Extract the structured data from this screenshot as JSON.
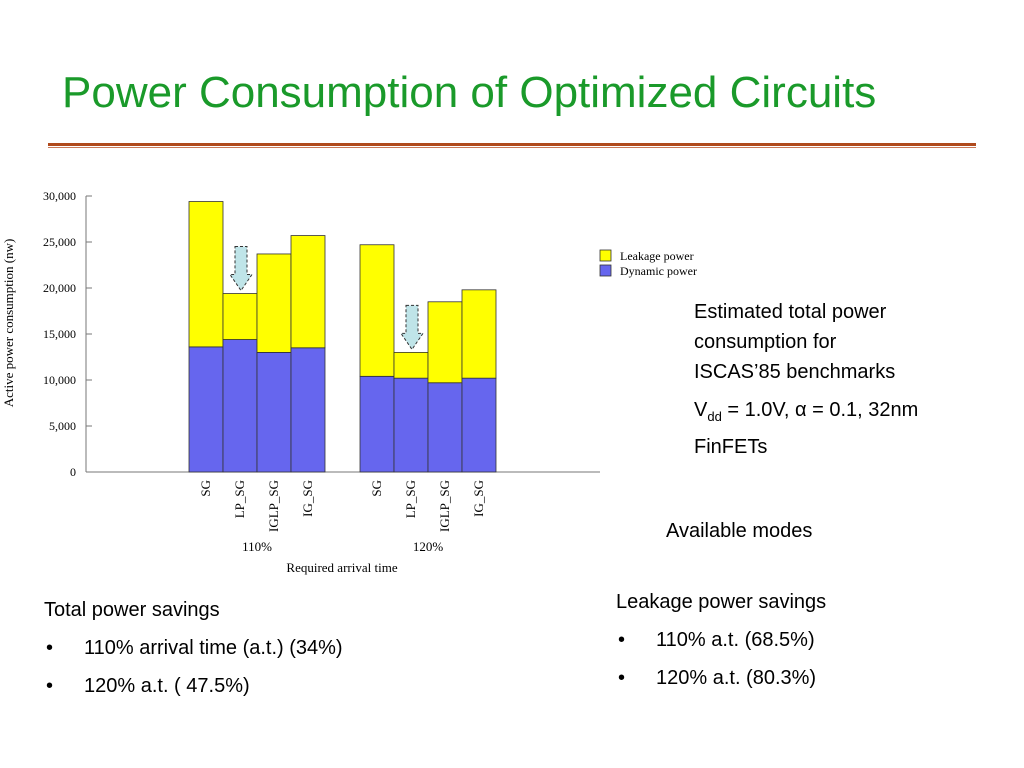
{
  "title": "Power Consumption of Optimized Circuits",
  "notes": {
    "line1": "Estimated total power",
    "line2": "consumption  for",
    "line3": "ISCAS’85 benchmarks",
    "vdd_v": "V",
    "vdd_sub": "dd",
    "vdd_rest": " = 1.0V, α = 0.1, 32nm",
    "vdd_line2": "FinFETs"
  },
  "available_modes": "Available modes",
  "total_savings": {
    "heading": "Total power savings",
    "items": [
      "110% arrival time (a.t.) (34%)",
      "120% a.t. ( 47.5%)"
    ]
  },
  "leakage_savings": {
    "heading": "Leakage power savings",
    "items": [
      "110% a.t. (68.5%)",
      "120% a.t. (80.3%)"
    ]
  },
  "bullet": "•",
  "chart_data": {
    "type": "bar",
    "stacked": true,
    "ylabel": "Active power consumption (nw)",
    "xlabel": "Required arrival time",
    "ylim": [
      0,
      30000
    ],
    "yticks": [
      "0",
      "5,000",
      "10,000",
      "15,000",
      "20,000",
      "25,000",
      "30,000"
    ],
    "ytick_values": [
      0,
      5000,
      10000,
      15000,
      20000,
      25000,
      30000
    ],
    "groups": [
      {
        "name": "110%",
        "categories": [
          "SG",
          "LP_SG",
          "IGLP_SG",
          "IG_SG"
        ]
      },
      {
        "name": "120%",
        "categories": [
          "SG",
          "LP_SG",
          "IGLP_SG",
          "IG_SG"
        ]
      }
    ],
    "series": [
      {
        "name": "Dynamic power",
        "color": "#6666ee",
        "values": [
          13600,
          14400,
          13000,
          13500,
          10400,
          10200,
          9700,
          10200
        ]
      },
      {
        "name": "Leakage power",
        "color": "#ffff00",
        "values": [
          15800,
          5000,
          10700,
          12200,
          14300,
          2800,
          8800,
          9600
        ]
      }
    ],
    "legend_position": "top-right",
    "grid": false
  }
}
